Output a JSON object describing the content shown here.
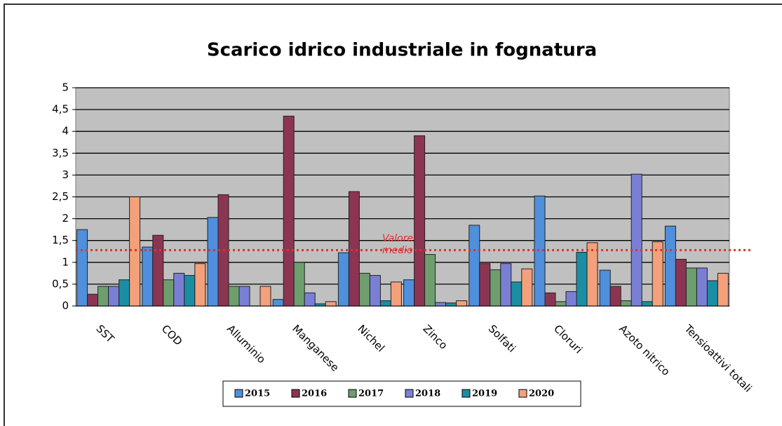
{
  "chart_data": {
    "type": "bar",
    "title": "Scarico idrico industriale in fognatura",
    "categories": [
      "SST",
      "COD",
      "Alluminio",
      "Manganese",
      "Nichel",
      "Zinco",
      "Solfati",
      "Cloruri",
      "Azoto nitrico",
      "Tensioattivi totali"
    ],
    "series": [
      {
        "name": "2015",
        "color": "#4f8fdc",
        "values": [
          1.75,
          1.35,
          2.03,
          0.15,
          1.22,
          0.6,
          1.85,
          2.52,
          0.82,
          1.83
        ]
      },
      {
        "name": "2016",
        "color": "#8c3553",
        "values": [
          0.27,
          1.62,
          2.55,
          4.35,
          2.62,
          3.9,
          0.97,
          0.3,
          0.45,
          1.07
        ]
      },
      {
        "name": "2017",
        "color": "#6e9e6e",
        "values": [
          0.45,
          0.6,
          0.45,
          1.0,
          0.75,
          1.18,
          0.83,
          0.1,
          0.12,
          0.87
        ]
      },
      {
        "name": "2018",
        "color": "#7a7fd6",
        "values": [
          0.45,
          0.75,
          0.45,
          0.3,
          0.7,
          0.08,
          0.97,
          0.33,
          3.02,
          0.87
        ]
      },
      {
        "name": "2019",
        "color": "#1b8ea3",
        "values": [
          0.6,
          0.7,
          0,
          0.05,
          0.12,
          0.07,
          0.55,
          1.23,
          0.1,
          0.58
        ]
      },
      {
        "name": "2020",
        "color": "#f4a07a",
        "values": [
          2.5,
          0.97,
          0.45,
          0.1,
          0.55,
          0.12,
          0.85,
          1.45,
          1.47,
          0.75
        ]
      }
    ],
    "ylim": [
      0,
      5
    ],
    "yticks": [
      0,
      {
        "value": 0.5,
        "label": "0,5"
      },
      1,
      {
        "value": 1.5,
        "label": "1,5"
      },
      2,
      {
        "value": 2.5,
        "label": "2,5"
      },
      3,
      {
        "value": 3.5,
        "label": "3,5"
      },
      4,
      {
        "value": 4.5,
        "label": "4,5"
      },
      5
    ],
    "grid": true,
    "mean_line": {
      "value": 1.28,
      "label": "Valore medio",
      "color": "#e03030"
    }
  }
}
